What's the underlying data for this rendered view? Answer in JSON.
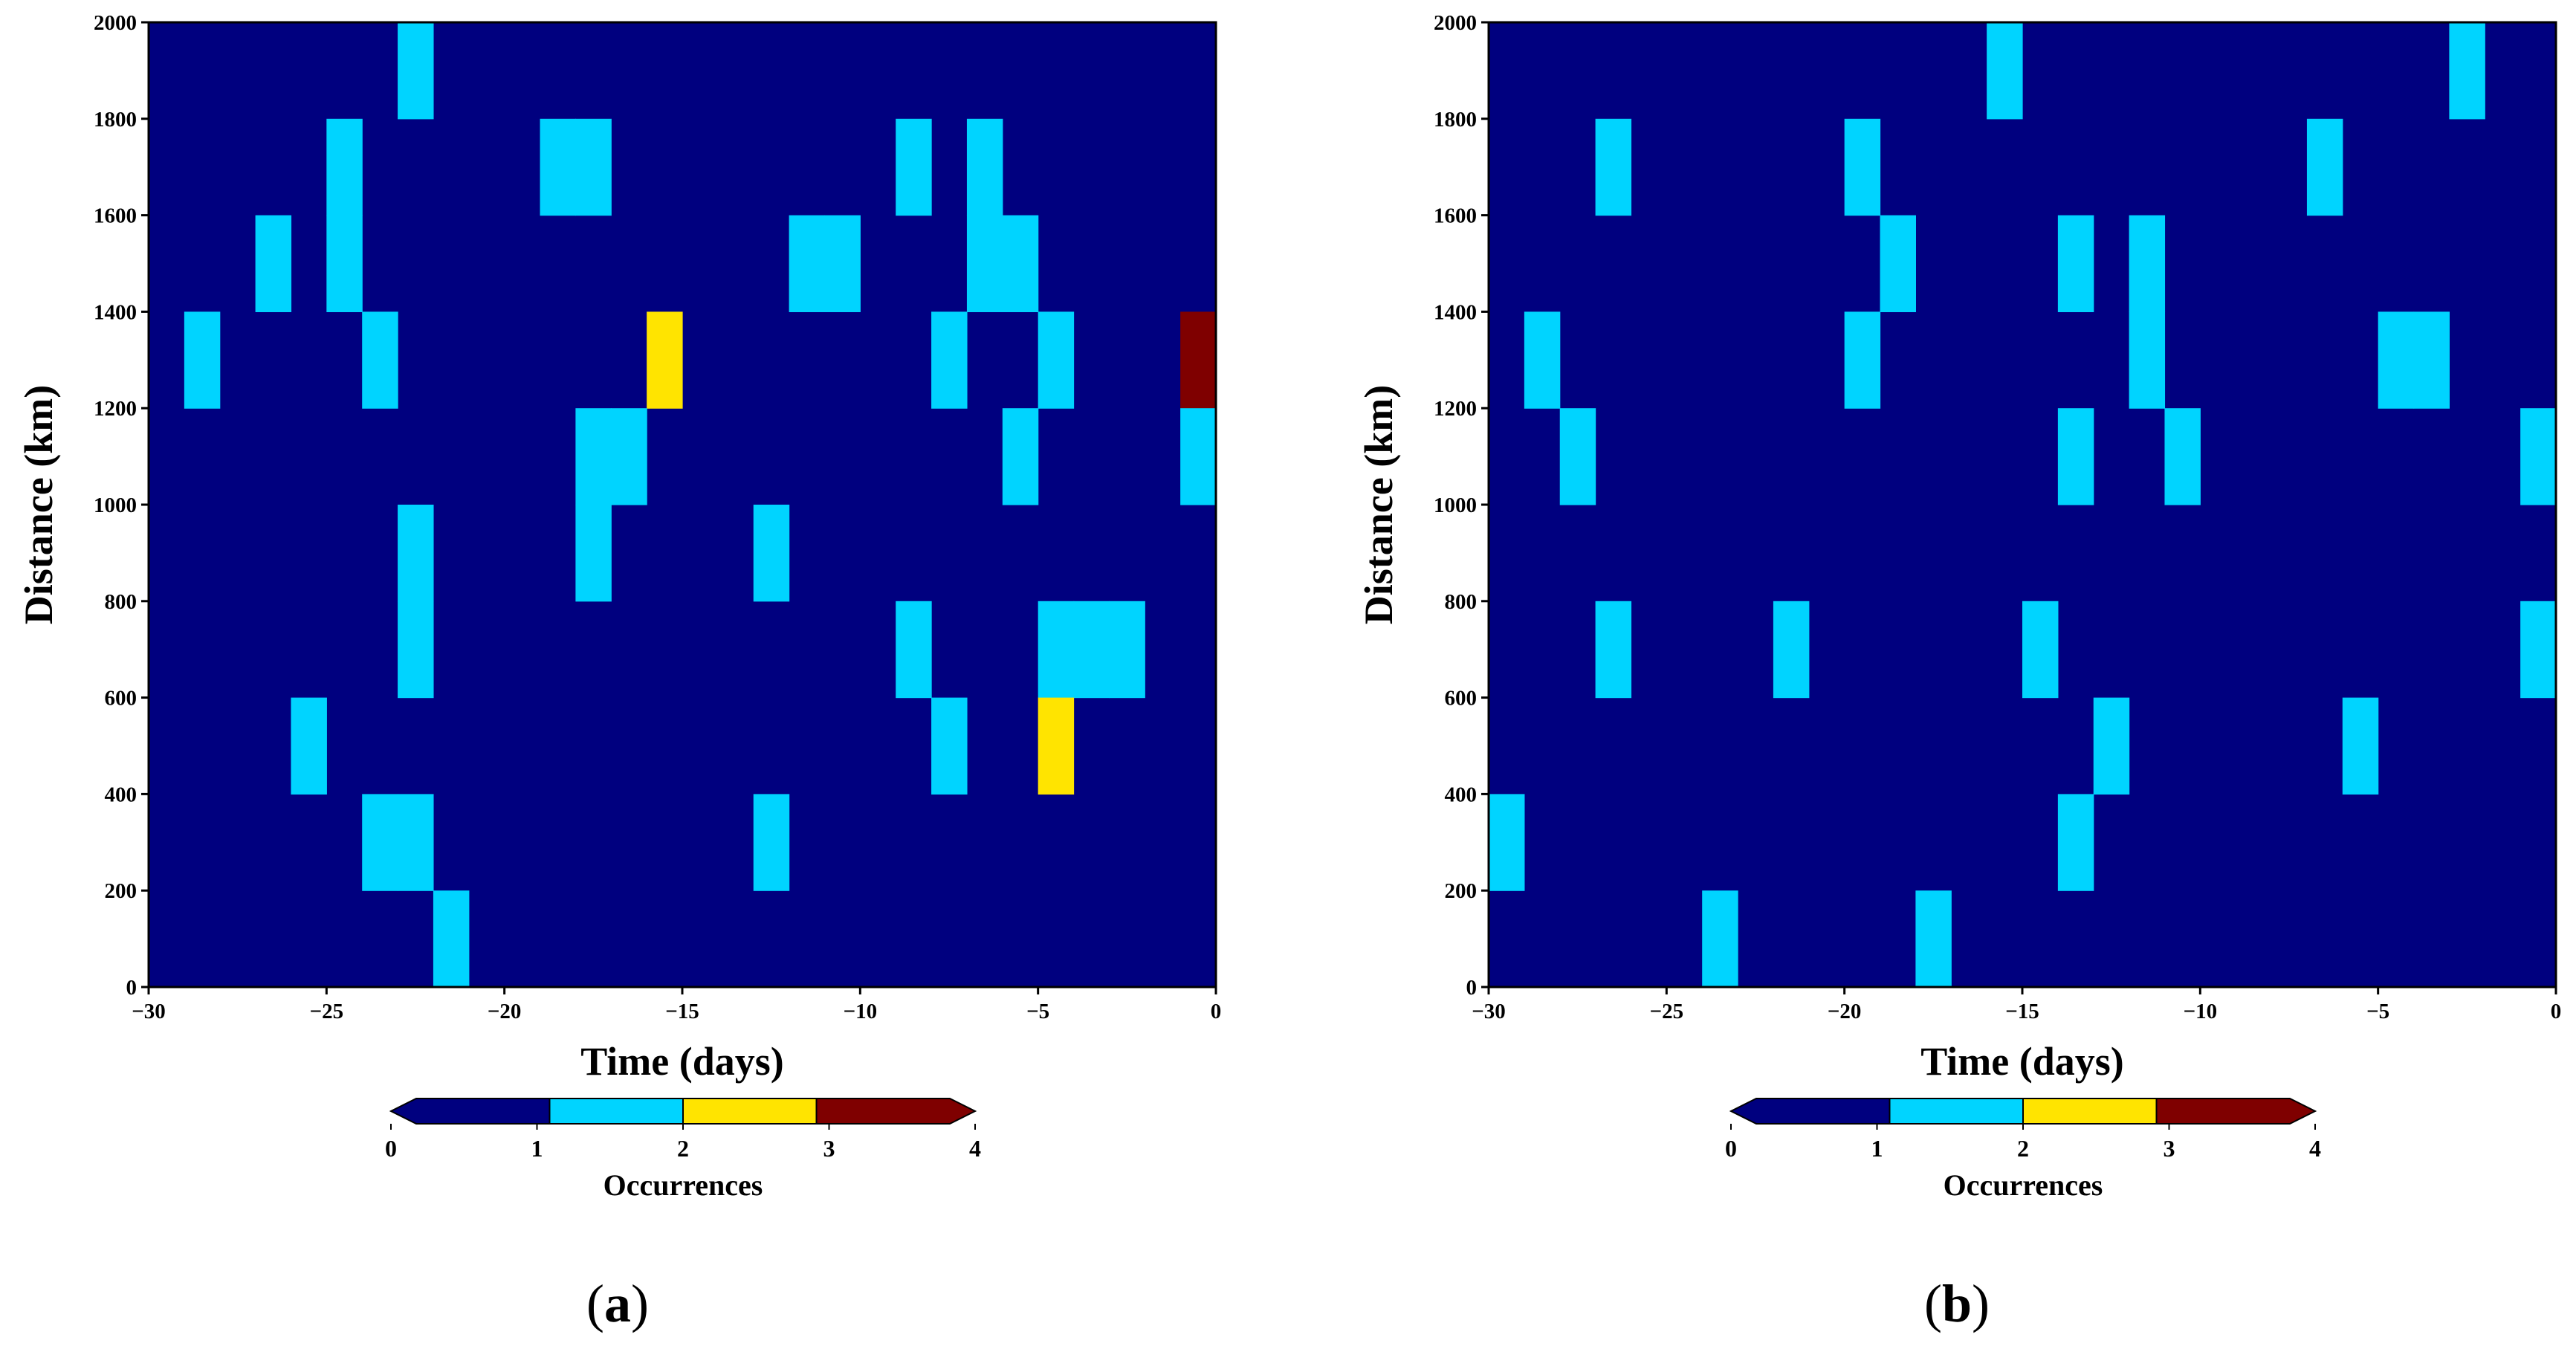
{
  "chart_data": [
    {
      "type": "heatmap",
      "panel_label_prefix": "(",
      "panel_label_letter": "a",
      "panel_label_suffix": ")",
      "xlabel": "Time (days)",
      "ylabel": "Distance (km)",
      "xlim": [
        -30,
        0
      ],
      "ylim": [
        0,
        2000
      ],
      "xticks": [
        "−30",
        "−25",
        "−20",
        "−15",
        "−10",
        "−5",
        "0"
      ],
      "yticks": [
        "0",
        "200",
        "400",
        "600",
        "800",
        "1000",
        "1200",
        "1400",
        "1600",
        "1800",
        "2000"
      ],
      "cell_width_days": 1,
      "cell_height_km": 200,
      "background_value": 0,
      "cells": [
        {
          "t": -23,
          "d": 1800,
          "v": 1
        },
        {
          "t": -25,
          "d": 1600,
          "v": 1
        },
        {
          "t": -25,
          "d": 1400,
          "v": 1
        },
        {
          "t": -19,
          "d": 1600,
          "v": 1
        },
        {
          "t": -18,
          "d": 1600,
          "v": 1
        },
        {
          "t": -9,
          "d": 1600,
          "v": 1
        },
        {
          "t": -7,
          "d": 1600,
          "v": 1
        },
        {
          "t": -7,
          "d": 1400,
          "v": 1
        },
        {
          "t": -6,
          "d": 1400,
          "v": 1
        },
        {
          "t": -27,
          "d": 1400,
          "v": 1
        },
        {
          "t": -12,
          "d": 1400,
          "v": 1
        },
        {
          "t": -11,
          "d": 1400,
          "v": 1
        },
        {
          "t": -29,
          "d": 1200,
          "v": 1
        },
        {
          "t": -24,
          "d": 1200,
          "v": 1
        },
        {
          "t": -16,
          "d": 1200,
          "v": 2
        },
        {
          "t": -8,
          "d": 1200,
          "v": 1
        },
        {
          "t": -5,
          "d": 1200,
          "v": 1
        },
        {
          "t": -1,
          "d": 1200,
          "v": 3
        },
        {
          "t": -18,
          "d": 1000,
          "v": 1
        },
        {
          "t": -17,
          "d": 1000,
          "v": 1
        },
        {
          "t": -6,
          "d": 1000,
          "v": 1
        },
        {
          "t": -1,
          "d": 1000,
          "v": 1
        },
        {
          "t": -23,
          "d": 800,
          "v": 1
        },
        {
          "t": -23,
          "d": 600,
          "v": 1
        },
        {
          "t": -18,
          "d": 800,
          "v": 1
        },
        {
          "t": -13,
          "d": 800,
          "v": 1
        },
        {
          "t": -9,
          "d": 600,
          "v": 1
        },
        {
          "t": -5,
          "d": 600,
          "v": 1
        },
        {
          "t": -4,
          "d": 600,
          "v": 1
        },
        {
          "t": -3,
          "d": 600,
          "v": 1
        },
        {
          "t": -26,
          "d": 400,
          "v": 1
        },
        {
          "t": -8,
          "d": 400,
          "v": 1
        },
        {
          "t": -5,
          "d": 400,
          "v": 2
        },
        {
          "t": -24,
          "d": 200,
          "v": 1
        },
        {
          "t": -23,
          "d": 200,
          "v": 1
        },
        {
          "t": -13,
          "d": 200,
          "v": 1
        },
        {
          "t": -22,
          "d": 0,
          "v": 1
        }
      ]
    },
    {
      "type": "heatmap",
      "panel_label_prefix": "(",
      "panel_label_letter": "b",
      "panel_label_suffix": ")",
      "xlabel": "Time (days)",
      "ylabel": "Distance (km)",
      "xlim": [
        -30,
        0
      ],
      "ylim": [
        0,
        2000
      ],
      "xticks": [
        "−30",
        "−25",
        "−20",
        "−15",
        "−10",
        "−5",
        "0"
      ],
      "yticks": [
        "0",
        "200",
        "400",
        "600",
        "800",
        "1000",
        "1200",
        "1400",
        "1600",
        "1800",
        "2000"
      ],
      "cell_width_days": 1,
      "cell_height_km": 200,
      "background_value": 0,
      "cells": [
        {
          "t": -16,
          "d": 1800,
          "v": 1
        },
        {
          "t": -3,
          "d": 1800,
          "v": 1
        },
        {
          "t": -27,
          "d": 1600,
          "v": 1
        },
        {
          "t": -20,
          "d": 1600,
          "v": 1
        },
        {
          "t": -7,
          "d": 1600,
          "v": 1
        },
        {
          "t": -19,
          "d": 1400,
          "v": 1
        },
        {
          "t": -14,
          "d": 1400,
          "v": 1
        },
        {
          "t": -12,
          "d": 1400,
          "v": 1
        },
        {
          "t": -12,
          "d": 1200,
          "v": 1
        },
        {
          "t": -29,
          "d": 1200,
          "v": 1
        },
        {
          "t": -20,
          "d": 1200,
          "v": 1
        },
        {
          "t": -5,
          "d": 1200,
          "v": 1
        },
        {
          "t": -4,
          "d": 1200,
          "v": 1
        },
        {
          "t": -28,
          "d": 1000,
          "v": 1
        },
        {
          "t": -14,
          "d": 1000,
          "v": 1
        },
        {
          "t": -11,
          "d": 1000,
          "v": 1
        },
        {
          "t": -1,
          "d": 1000,
          "v": 1
        },
        {
          "t": -27,
          "d": 600,
          "v": 1
        },
        {
          "t": -22,
          "d": 600,
          "v": 1
        },
        {
          "t": -15,
          "d": 600,
          "v": 1
        },
        {
          "t": -1,
          "d": 600,
          "v": 1
        },
        {
          "t": -13,
          "d": 400,
          "v": 1
        },
        {
          "t": -6,
          "d": 400,
          "v": 1
        },
        {
          "t": -30,
          "d": 200,
          "v": 1
        },
        {
          "t": -14,
          "d": 200,
          "v": 1
        },
        {
          "t": -24,
          "d": 0,
          "v": 1
        },
        {
          "t": -18,
          "d": 0,
          "v": 1
        }
      ]
    }
  ],
  "colorbar": {
    "title": "Occurrences",
    "ticks": [
      "0",
      "1",
      "2",
      "3",
      "4"
    ],
    "bins": [
      {
        "range": [
          0,
          1
        ],
        "color": "#00007f"
      },
      {
        "range": [
          1,
          2
        ],
        "color": "#00d4ff"
      },
      {
        "range": [
          2,
          3
        ],
        "color": "#ffe400"
      },
      {
        "range": [
          3,
          4
        ],
        "color": "#7f0000"
      }
    ],
    "extend": "both"
  }
}
